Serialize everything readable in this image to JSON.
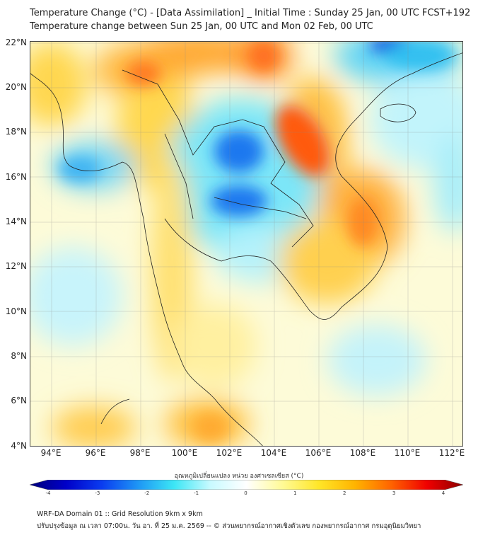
{
  "title": {
    "line1": "Temperature Change (°C) - [Data Assimilation] _ Initial Time : Sunday 25 Jan, 00 UTC FCST+192",
    "line2": "Temperature change between Sun 25 Jan, 00 UTC and Mon 02 Feb, 00 UTC"
  },
  "map": {
    "lat_labels": [
      "22°N",
      "20°N",
      "18°N",
      "16°N",
      "14°N",
      "12°N",
      "10°N",
      "8°N",
      "6°N",
      "4°N"
    ],
    "lon_labels": [
      "94°E",
      "96°E",
      "98°E",
      "100°E",
      "102°E",
      "104°E",
      "106°E",
      "108°E",
      "110°E",
      "112°E"
    ],
    "extent": {
      "lon_min": 93,
      "lon_max": 112.5,
      "lat_min": 4,
      "lat_max": 22.2
    }
  },
  "colorbar": {
    "label": "อุณหภูมิเปลี่ยนแปลง หน่วย องศาเซลเซียส (°C)",
    "ticks": [
      "-4",
      "-3",
      "-2",
      "-1",
      "0",
      "1",
      "2",
      "3",
      "4"
    ],
    "min": -4,
    "max": 4,
    "colors": [
      "#00007a",
      "#0000c8",
      "#0a3cf0",
      "#1e96f5",
      "#3ce6f5",
      "#c8faff",
      "#ffffff",
      "#fffa96",
      "#ffe628",
      "#ffb400",
      "#ff6400",
      "#f00000",
      "#8c0000"
    ]
  },
  "footer": {
    "line1": "WRF-DA Domain 01 :: Grid Resolution 9km x 9km",
    "line2": "ปรับปรุงข้อมูล ณ เวลา 07:00น. วัน อา. ที่ 25 ม.ค. 2569 -- © ส่วนพยากรณ์อากาศเชิงตัวเลข กองพยากรณ์อากาศ กรมอุตุนิยมวิทยา"
  }
}
